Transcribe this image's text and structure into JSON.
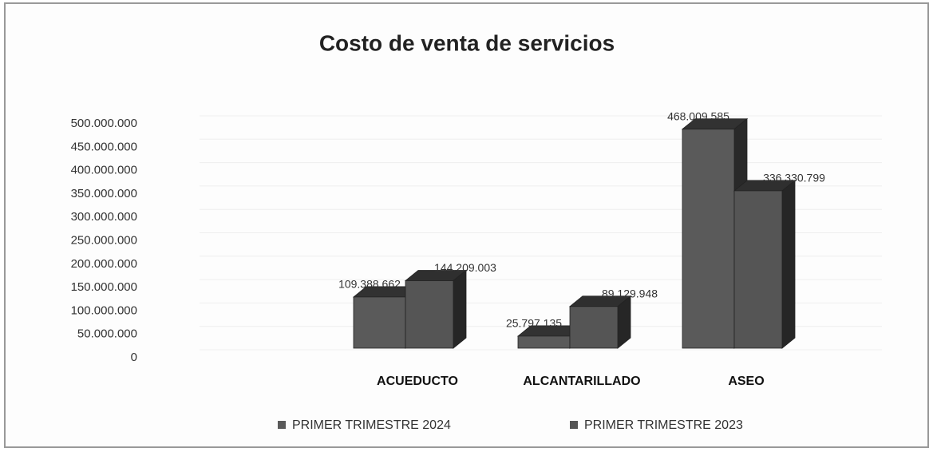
{
  "chart_data": {
    "type": "bar3d",
    "title": "Costo de venta de servicios",
    "categories": [
      "ACUEDUCTO",
      "ALCANTARILLADO",
      "ASEO"
    ],
    "series": [
      {
        "name": "PRIMER TRIMESTRE 2024",
        "color": "#5a5a5a",
        "values": [
          109388662,
          25797135,
          468009585
        ],
        "value_labels": [
          "109.388.662",
          "25.797.135",
          "468.009.585"
        ]
      },
      {
        "name": "PRIMER TRIMESTRE 2023",
        "color": "#555555",
        "values": [
          144209003,
          89129948,
          336330799
        ],
        "value_labels": [
          "144.209.003",
          "89.129.948",
          "336.330.799"
        ]
      }
    ],
    "ylim": [
      0,
      500000000
    ],
    "yticks": [
      0,
      {
        "value": 50000000,
        "label": "50.000.000"
      },
      {
        "value": 100000000,
        "label": "100.000.000"
      },
      {
        "value": 150000000,
        "label": "150.000.000"
      },
      {
        "value": 200000000,
        "label": "200.000.000"
      },
      {
        "value": 250000000,
        "label": "250.000.000"
      },
      {
        "value": 300000000,
        "label": "300.000.000"
      },
      {
        "value": 350000000,
        "label": "350.000.000"
      },
      {
        "value": 400000000,
        "label": "400.000.000"
      },
      {
        "value": 450000000,
        "label": "450.000.000"
      },
      {
        "value": 500000000,
        "label": "500.000.000"
      }
    ],
    "legend": "bottom"
  }
}
